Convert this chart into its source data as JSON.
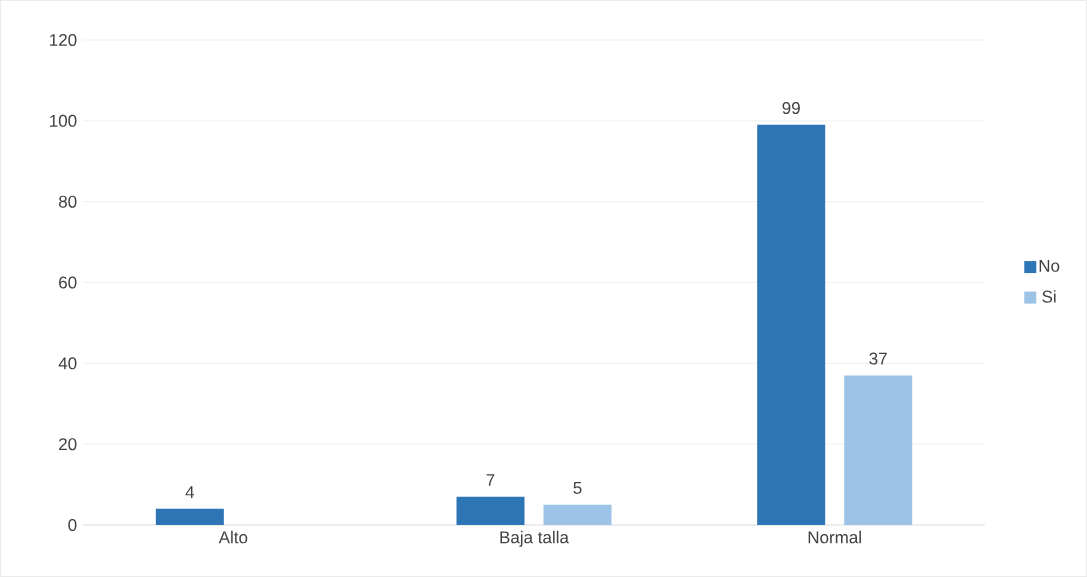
{
  "chart_data": {
    "type": "bar",
    "categories": [
      "Alto",
      "Baja talla",
      "Normal"
    ],
    "series": [
      {
        "name": "No",
        "color": "#2e75b6",
        "values": [
          4,
          7,
          99
        ]
      },
      {
        "name": "Si",
        "color": "#9dc3e6",
        "values": [
          null,
          5,
          37
        ]
      }
    ],
    "ylim": [
      0,
      120
    ],
    "yticks": [
      0,
      20,
      40,
      60,
      80,
      100,
      120
    ],
    "grid": "y",
    "legend": "right",
    "data_labels": true
  }
}
